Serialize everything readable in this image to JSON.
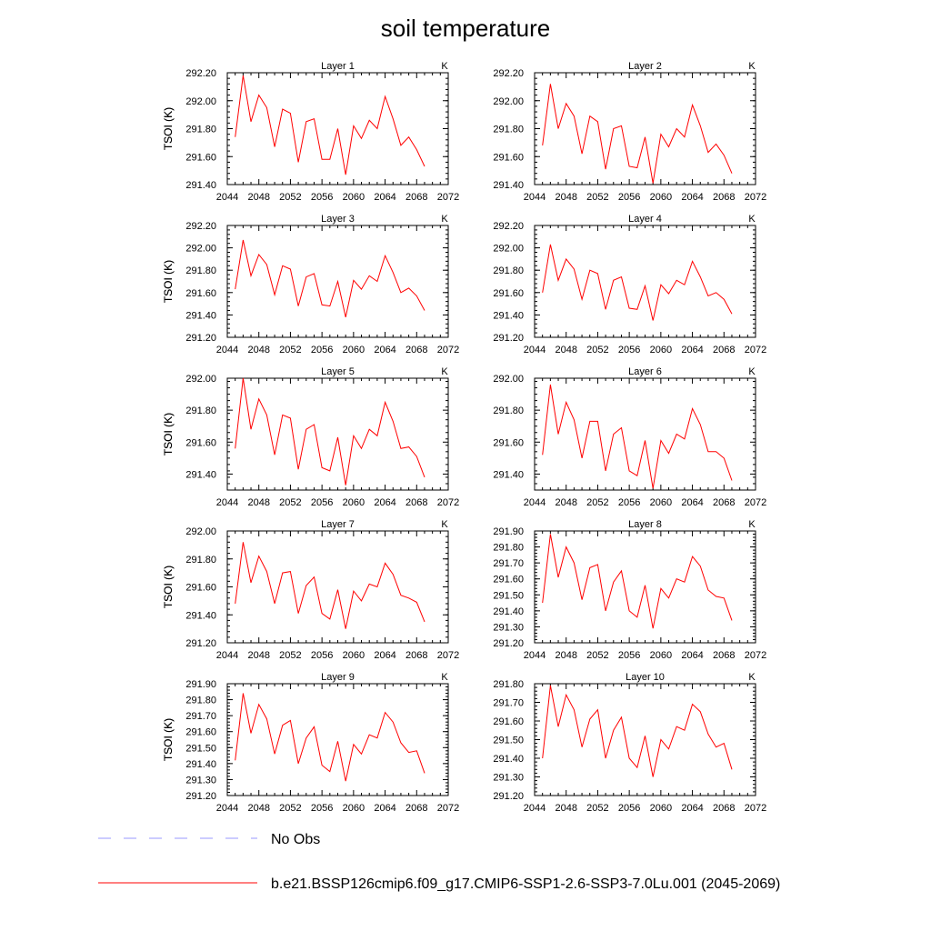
{
  "figure": {
    "title": "soil temperature",
    "legend": [
      {
        "label": "No Obs",
        "color": "#9999ff",
        "dash": true
      },
      {
        "label": "b.e21.BSSP126cmip6.f09_g17.CMIP6-SSP1-2.6-SSP3-7.0Lu.001 (2045-2069)",
        "color": "#ff0000",
        "dash": false
      }
    ]
  },
  "chart_data": [
    {
      "type": "line",
      "title": "Layer 1",
      "unit": "K",
      "ylabel": "TSOI  (K)",
      "xlim": [
        2044,
        2072
      ],
      "xticks": [
        2044,
        2048,
        2052,
        2056,
        2060,
        2064,
        2068,
        2072
      ],
      "ylim": [
        291.4,
        292.2
      ],
      "yticks": [
        "291.40",
        "291.60",
        "291.80",
        "292.00",
        "292.20"
      ],
      "series": [
        {
          "color": "#ff0000",
          "x": [
            2045,
            2046,
            2047,
            2048,
            2049,
            2050,
            2051,
            2052,
            2053,
            2054,
            2055,
            2056,
            2057,
            2058,
            2059,
            2060,
            2061,
            2062,
            2063,
            2064,
            2065,
            2066,
            2067,
            2068,
            2069
          ],
          "values": [
            291.74,
            292.18,
            291.85,
            292.04,
            291.95,
            291.67,
            291.94,
            291.91,
            291.56,
            291.85,
            291.87,
            291.58,
            291.58,
            291.8,
            291.47,
            291.82,
            291.73,
            291.86,
            291.8,
            292.03,
            291.87,
            291.68,
            291.74,
            291.65,
            291.53
          ]
        }
      ]
    },
    {
      "type": "line",
      "title": "Layer 2",
      "unit": "K",
      "ylabel": "TSOI  (K)",
      "xlim": [
        2044,
        2072
      ],
      "xticks": [
        2044,
        2048,
        2052,
        2056,
        2060,
        2064,
        2068,
        2072
      ],
      "ylim": [
        291.4,
        292.2
      ],
      "yticks": [
        "291.40",
        "291.60",
        "291.80",
        "292.00",
        "292.20"
      ],
      "series": [
        {
          "color": "#ff0000",
          "x": [
            2045,
            2046,
            2047,
            2048,
            2049,
            2050,
            2051,
            2052,
            2053,
            2054,
            2055,
            2056,
            2057,
            2058,
            2059,
            2060,
            2061,
            2062,
            2063,
            2064,
            2065,
            2066,
            2067,
            2068,
            2069
          ],
          "values": [
            291.68,
            292.12,
            291.8,
            291.98,
            291.89,
            291.62,
            291.89,
            291.85,
            291.51,
            291.8,
            291.82,
            291.53,
            291.52,
            291.74,
            291.41,
            291.76,
            291.67,
            291.8,
            291.74,
            291.97,
            291.82,
            291.63,
            291.69,
            291.61,
            291.48
          ]
        }
      ]
    },
    {
      "type": "line",
      "title": "Layer 3",
      "unit": "K",
      "ylabel": "TSOI  (K)",
      "xlim": [
        2044,
        2072
      ],
      "xticks": [
        2044,
        2048,
        2052,
        2056,
        2060,
        2064,
        2068,
        2072
      ],
      "ylim": [
        291.2,
        292.2
      ],
      "yticks": [
        "291.20",
        "291.40",
        "291.60",
        "291.80",
        "292.00",
        "292.20"
      ],
      "series": [
        {
          "color": "#ff0000",
          "x": [
            2045,
            2046,
            2047,
            2048,
            2049,
            2050,
            2051,
            2052,
            2053,
            2054,
            2055,
            2056,
            2057,
            2058,
            2059,
            2060,
            2061,
            2062,
            2063,
            2064,
            2065,
            2066,
            2067,
            2068,
            2069
          ],
          "values": [
            291.63,
            292.07,
            291.75,
            291.94,
            291.85,
            291.58,
            291.84,
            291.81,
            291.48,
            291.74,
            291.77,
            291.49,
            291.48,
            291.7,
            291.38,
            291.71,
            291.63,
            291.75,
            291.7,
            291.93,
            291.78,
            291.6,
            291.64,
            291.57,
            291.44
          ]
        }
      ]
    },
    {
      "type": "line",
      "title": "Layer 4",
      "unit": "K",
      "ylabel": "TSOI  (K)",
      "xlim": [
        2044,
        2072
      ],
      "xticks": [
        2044,
        2048,
        2052,
        2056,
        2060,
        2064,
        2068,
        2072
      ],
      "ylim": [
        291.2,
        292.2
      ],
      "yticks": [
        "291.20",
        "291.40",
        "291.60",
        "291.80",
        "292.00",
        "292.20"
      ],
      "series": [
        {
          "color": "#ff0000",
          "x": [
            2045,
            2046,
            2047,
            2048,
            2049,
            2050,
            2051,
            2052,
            2053,
            2054,
            2055,
            2056,
            2057,
            2058,
            2059,
            2060,
            2061,
            2062,
            2063,
            2064,
            2065,
            2066,
            2067,
            2068,
            2069
          ],
          "values": [
            291.6,
            292.03,
            291.71,
            291.9,
            291.81,
            291.54,
            291.8,
            291.77,
            291.45,
            291.71,
            291.74,
            291.46,
            291.45,
            291.66,
            291.35,
            291.67,
            291.59,
            291.71,
            291.67,
            291.88,
            291.74,
            291.57,
            291.6,
            291.54,
            291.41
          ]
        }
      ]
    },
    {
      "type": "line",
      "title": "Layer 5",
      "unit": "K",
      "ylabel": "TSOI  (K)",
      "xlim": [
        2044,
        2072
      ],
      "xticks": [
        2044,
        2048,
        2052,
        2056,
        2060,
        2064,
        2068,
        2072
      ],
      "ylim": [
        291.3,
        292.0
      ],
      "yticks": [
        "291.40",
        "291.60",
        "291.80",
        "292.00"
      ],
      "series": [
        {
          "color": "#ff0000",
          "x": [
            2045,
            2046,
            2047,
            2048,
            2049,
            2050,
            2051,
            2052,
            2053,
            2054,
            2055,
            2056,
            2057,
            2058,
            2059,
            2060,
            2061,
            2062,
            2063,
            2064,
            2065,
            2066,
            2067,
            2068,
            2069
          ],
          "values": [
            291.56,
            292.0,
            291.68,
            291.87,
            291.77,
            291.52,
            291.77,
            291.75,
            291.43,
            291.68,
            291.71,
            291.44,
            291.42,
            291.63,
            291.33,
            291.64,
            291.56,
            291.68,
            291.64,
            291.85,
            291.73,
            291.56,
            291.57,
            291.51,
            291.38
          ]
        }
      ]
    },
    {
      "type": "line",
      "title": "Layer 6",
      "unit": "K",
      "ylabel": "TSOI  (K)",
      "xlim": [
        2044,
        2072
      ],
      "xticks": [
        2044,
        2048,
        2052,
        2056,
        2060,
        2064,
        2068,
        2072
      ],
      "ylim": [
        291.3,
        292.0
      ],
      "yticks": [
        "291.40",
        "291.60",
        "291.80",
        "292.00"
      ],
      "series": [
        {
          "color": "#ff0000",
          "x": [
            2045,
            2046,
            2047,
            2048,
            2049,
            2050,
            2051,
            2052,
            2053,
            2054,
            2055,
            2056,
            2057,
            2058,
            2059,
            2060,
            2061,
            2062,
            2063,
            2064,
            2065,
            2066,
            2067,
            2068,
            2069
          ],
          "values": [
            291.52,
            291.96,
            291.65,
            291.85,
            291.74,
            291.5,
            291.73,
            291.73,
            291.42,
            291.65,
            291.69,
            291.42,
            291.39,
            291.61,
            291.31,
            291.61,
            291.53,
            291.65,
            291.62,
            291.81,
            291.71,
            291.54,
            291.54,
            291.5,
            291.36
          ]
        }
      ]
    },
    {
      "type": "line",
      "title": "Layer 7",
      "unit": "K",
      "ylabel": "TSOI  (K)",
      "xlim": [
        2044,
        2072
      ],
      "xticks": [
        2044,
        2048,
        2052,
        2056,
        2060,
        2064,
        2068,
        2072
      ],
      "ylim": [
        291.2,
        292.0
      ],
      "yticks": [
        "291.20",
        "291.40",
        "291.60",
        "291.80",
        "292.00"
      ],
      "series": [
        {
          "color": "#ff0000",
          "x": [
            2045,
            2046,
            2047,
            2048,
            2049,
            2050,
            2051,
            2052,
            2053,
            2054,
            2055,
            2056,
            2057,
            2058,
            2059,
            2060,
            2061,
            2062,
            2063,
            2064,
            2065,
            2066,
            2067,
            2068,
            2069
          ],
          "values": [
            291.48,
            291.92,
            291.63,
            291.82,
            291.71,
            291.48,
            291.7,
            291.71,
            291.41,
            291.61,
            291.67,
            291.41,
            291.37,
            291.58,
            291.3,
            291.57,
            291.5,
            291.62,
            291.6,
            291.77,
            291.69,
            291.54,
            291.52,
            291.49,
            291.35
          ]
        }
      ]
    },
    {
      "type": "line",
      "title": "Layer 8",
      "unit": "K",
      "ylabel": "TSOI  (K)",
      "xlim": [
        2044,
        2072
      ],
      "xticks": [
        2044,
        2048,
        2052,
        2056,
        2060,
        2064,
        2068,
        2072
      ],
      "ylim": [
        291.2,
        291.9
      ],
      "yticks": [
        "291.20",
        "291.30",
        "291.40",
        "291.50",
        "291.60",
        "291.70",
        "291.80",
        "291.90"
      ],
      "series": [
        {
          "color": "#ff0000",
          "x": [
            2045,
            2046,
            2047,
            2048,
            2049,
            2050,
            2051,
            2052,
            2053,
            2054,
            2055,
            2056,
            2057,
            2058,
            2059,
            2060,
            2061,
            2062,
            2063,
            2064,
            2065,
            2066,
            2067,
            2068,
            2069
          ],
          "values": [
            291.45,
            291.88,
            291.61,
            291.8,
            291.7,
            291.47,
            291.67,
            291.69,
            291.4,
            291.58,
            291.65,
            291.4,
            291.36,
            291.56,
            291.29,
            291.54,
            291.48,
            291.6,
            291.58,
            291.74,
            291.68,
            291.53,
            291.49,
            291.48,
            291.34
          ]
        }
      ]
    },
    {
      "type": "line",
      "title": "Layer 9",
      "unit": "K",
      "ylabel": "TSOI  (K)",
      "xlim": [
        2044,
        2072
      ],
      "xticks": [
        2044,
        2048,
        2052,
        2056,
        2060,
        2064,
        2068,
        2072
      ],
      "ylim": [
        291.2,
        291.9
      ],
      "yticks": [
        "291.20",
        "291.30",
        "291.40",
        "291.50",
        "291.60",
        "291.70",
        "291.80",
        "291.90"
      ],
      "series": [
        {
          "color": "#ff0000",
          "x": [
            2045,
            2046,
            2047,
            2048,
            2049,
            2050,
            2051,
            2052,
            2053,
            2054,
            2055,
            2056,
            2057,
            2058,
            2059,
            2060,
            2061,
            2062,
            2063,
            2064,
            2065,
            2066,
            2067,
            2068,
            2069
          ],
          "values": [
            291.42,
            291.84,
            291.59,
            291.77,
            291.68,
            291.46,
            291.64,
            291.67,
            291.4,
            291.56,
            291.63,
            291.39,
            291.35,
            291.54,
            291.29,
            291.52,
            291.46,
            291.58,
            291.56,
            291.72,
            291.66,
            291.53,
            291.47,
            291.48,
            291.34
          ]
        }
      ]
    },
    {
      "type": "line",
      "title": "Layer 10",
      "unit": "K",
      "ylabel": "TSOI  (K)",
      "xlim": [
        2044,
        2072
      ],
      "xticks": [
        2044,
        2048,
        2052,
        2056,
        2060,
        2064,
        2068,
        2072
      ],
      "ylim": [
        291.2,
        291.8
      ],
      "yticks": [
        "291.20",
        "291.30",
        "291.40",
        "291.50",
        "291.60",
        "291.70",
        "291.80"
      ],
      "series": [
        {
          "color": "#ff0000",
          "x": [
            2045,
            2046,
            2047,
            2048,
            2049,
            2050,
            2051,
            2052,
            2053,
            2054,
            2055,
            2056,
            2057,
            2058,
            2059,
            2060,
            2061,
            2062,
            2063,
            2064,
            2065,
            2066,
            2067,
            2068,
            2069
          ],
          "values": [
            291.4,
            291.79,
            291.57,
            291.74,
            291.66,
            291.46,
            291.61,
            291.66,
            291.4,
            291.55,
            291.62,
            291.4,
            291.35,
            291.52,
            291.3,
            291.5,
            291.45,
            291.57,
            291.55,
            291.69,
            291.65,
            291.53,
            291.46,
            291.48,
            291.34
          ]
        }
      ]
    }
  ]
}
